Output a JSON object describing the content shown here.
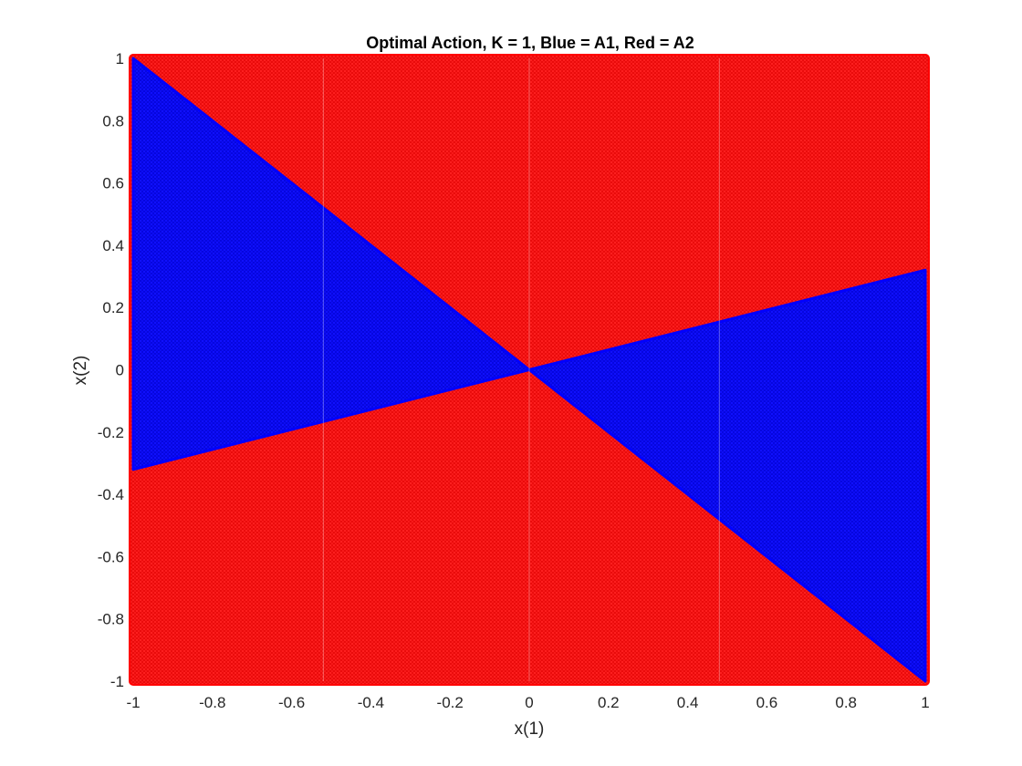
{
  "chart_data": {
    "type": "scatter",
    "title": "Optimal Action, K = 1, Blue = A1, Red = A2",
    "xlabel": "x(1)",
    "ylabel": "x(2)",
    "xlim": [
      -1,
      1
    ],
    "ylim": [
      -1,
      1
    ],
    "xticks": [
      "-1",
      "-0.8",
      "-0.6",
      "-0.4",
      "-0.2",
      "0",
      "0.2",
      "0.4",
      "0.6",
      "0.8",
      "1"
    ],
    "yticks": [
      "-1",
      "-0.8",
      "-0.6",
      "-0.4",
      "-0.2",
      "0",
      "0.2",
      "0.4",
      "0.6",
      "0.8",
      "1"
    ],
    "grid": false,
    "series": [
      {
        "name": "A1",
        "color": "#0000ff",
        "region": "wedge bounded by lines x2 = -x1 and x2 = 0.32*x1 (through origin)",
        "boundary_lines": [
          {
            "slope": -1.0,
            "intercept": 0
          },
          {
            "slope": 0.32,
            "intercept": 0
          }
        ]
      },
      {
        "name": "A2",
        "color": "#ff0000",
        "region": "complement of A1 within [-1,1] x [-1,1]"
      }
    ]
  }
}
